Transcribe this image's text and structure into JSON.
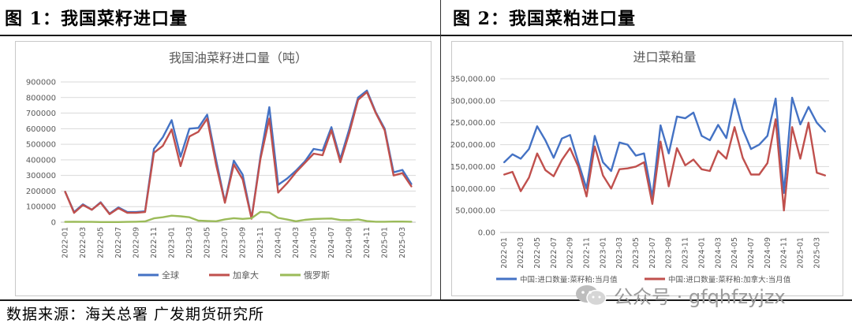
{
  "header_left": "图 1：我国菜籽进口量",
  "header_right": "图 2：我国菜粕进口量",
  "source": "数据来源：海关总署  广发期货研究所",
  "watermark": "公众号 · gfqhfzyjzx",
  "chart_data": [
    {
      "type": "line",
      "title": "我国油菜籽进口量（吨）",
      "ylim": [
        0,
        900000
      ],
      "yticks": [
        "0",
        "100000",
        "200000",
        "300000",
        "400000",
        "500000",
        "600000",
        "700000",
        "800000",
        "900000"
      ],
      "xticks": [
        "2022-01",
        "2022-03",
        "2022-05",
        "2022-07",
        "2022-09",
        "2022-11",
        "2023-01",
        "2023-03",
        "2023-05",
        "2023-07",
        "2023-09",
        "2023-11",
        "2024-01",
        "2024-03",
        "2024-05",
        "2024-07",
        "2024-09",
        "2024-11",
        "2025-01",
        "2025-03"
      ],
      "grid": true,
      "legend": "bottom",
      "series": [
        {
          "name": "全球",
          "color": "#4472c4",
          "values": [
            195000,
            65000,
            115000,
            80000,
            128000,
            55000,
            95000,
            65000,
            65000,
            70000,
            470000,
            545000,
            655000,
            420000,
            600000,
            605000,
            690000,
            400000,
            130000,
            395000,
            305000,
            25000,
            420000,
            738000,
            240000,
            280000,
            330000,
            390000,
            470000,
            460000,
            610000,
            405000,
            595000,
            800000,
            845000,
            705000,
            600000,
            320000,
            335000,
            245000
          ]
        },
        {
          "name": "加拿大",
          "color": "#c0504d",
          "values": [
            195000,
            60000,
            110000,
            80000,
            125000,
            52000,
            90000,
            60000,
            60000,
            65000,
            445000,
            490000,
            595000,
            360000,
            550000,
            580000,
            665000,
            370000,
            125000,
            370000,
            275000,
            22000,
            405000,
            665000,
            190000,
            250000,
            320000,
            380000,
            440000,
            430000,
            590000,
            385000,
            570000,
            785000,
            835000,
            700000,
            590000,
            300000,
            315000,
            230000
          ]
        },
        {
          "name": "俄罗斯",
          "color": "#9bbb59",
          "values": [
            2000,
            3000,
            2000,
            2000,
            1000,
            1000,
            1000,
            2000,
            3000,
            5000,
            25000,
            32000,
            42000,
            38000,
            32000,
            10000,
            8000,
            6000,
            18000,
            26000,
            21000,
            26000,
            66000,
            62000,
            28000,
            17000,
            6000,
            15000,
            20000,
            22000,
            24000,
            14000,
            13000,
            18000,
            7000,
            3000,
            3000,
            4000,
            4000,
            3000
          ]
        }
      ]
    },
    {
      "type": "line",
      "title": "进口菜粕量",
      "ylim": [
        0,
        350000
      ],
      "yticks": [
        "0.00",
        "50,000.00",
        "100,000.00",
        "150,000.00",
        "200,000.00",
        "250,000.00",
        "300,000.00",
        "350,000.00"
      ],
      "xticks": [
        "2022-01",
        "2022-03",
        "2022-05",
        "2022-07",
        "2022-09",
        "2022-11",
        "2023-01",
        "2023-03",
        "2023-05",
        "2023-07",
        "2023-09",
        "2023-11",
        "2024-01",
        "2024-03",
        "2024-05",
        "2024-07",
        "2024-09",
        "2024-11",
        "2025-01",
        "2025-03"
      ],
      "grid": true,
      "legend": "bottom",
      "series": [
        {
          "name": "中国:进口数量:菜籽粕:当月值",
          "color": "#4472c4",
          "values": [
            160000,
            178000,
            168000,
            190000,
            242000,
            210000,
            170000,
            214000,
            222000,
            160000,
            100000,
            220000,
            160000,
            140000,
            205000,
            200000,
            175000,
            180000,
            80000,
            244000,
            180000,
            264000,
            260000,
            273000,
            220000,
            210000,
            245000,
            215000,
            304000,
            235000,
            190000,
            200000,
            220000,
            305000,
            90000,
            307000,
            246000,
            286000,
            250000,
            230000
          ]
        },
        {
          "name": "中国:进口数量:菜籽粕:加拿大:当月值",
          "color": "#c0504d",
          "values": [
            132000,
            138000,
            94000,
            125000,
            180000,
            142000,
            128000,
            165000,
            192000,
            150000,
            82000,
            196000,
            130000,
            100000,
            144000,
            146000,
            150000,
            160000,
            65000,
            207000,
            105000,
            192000,
            153000,
            166000,
            144000,
            140000,
            186000,
            168000,
            240000,
            170000,
            132000,
            132000,
            158000,
            258000,
            50000,
            240000,
            168000,
            250000,
            136000,
            130000
          ]
        }
      ]
    }
  ]
}
